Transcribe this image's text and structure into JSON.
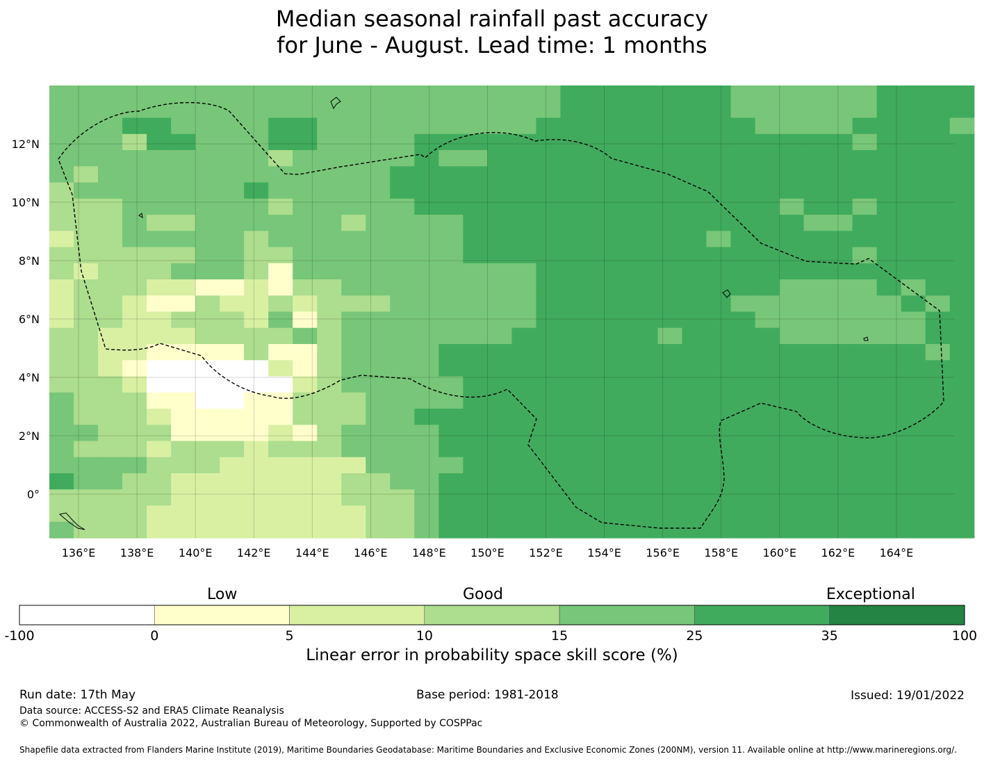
{
  "title": {
    "line1": "Median seasonal rainfall past accuracy",
    "line2": "for June - August. Lead time: 1 months"
  },
  "map": {
    "lon_range": [
      135,
      166
    ],
    "lat_range": [
      -1.5,
      14
    ],
    "lon_ticks": [
      "136°E",
      "138°E",
      "140°E",
      "142°E",
      "144°E",
      "146°E",
      "148°E",
      "150°E",
      "152°E",
      "154°E",
      "156°E",
      "158°E",
      "160°E",
      "162°E",
      "164°E"
    ],
    "lat_ticks": [
      "12°N",
      "10°N",
      "8°N",
      "6°N",
      "4°N",
      "2°N",
      "0°"
    ]
  },
  "colorbar": {
    "categories": [
      "Low",
      "Good",
      "Exceptional"
    ],
    "bounds": [
      "-100",
      "0",
      "5",
      "10",
      "15",
      "25",
      "35",
      "100"
    ],
    "colors": [
      "#ffffff",
      "#ffffcc",
      "#d9f0a3",
      "#addd8e",
      "#78c679",
      "#41ab5d",
      "#238443"
    ],
    "label": "Linear error in probability space skill score (%)"
  },
  "footer": {
    "run_date": "Run date: 17th May",
    "base_period": "Base period: 1981-2018",
    "issued": "Issued: 19/01/2022",
    "data_source": "Data source: ACCESS-S2 and ERA5 Climate Reanalysis",
    "copyright": "© Commonwealth of Australia 2022, Australian Bureau of Meteorology, Supported by COSPPac",
    "shapefile": "Shapefile data extracted from Flanders Marine Institute (2019), Maritime Boundaries Geodatabase: Maritime Boundaries and Exclusive Economic Zones (200NM), version 11. Available online at http://www.marineregions.org/."
  }
}
